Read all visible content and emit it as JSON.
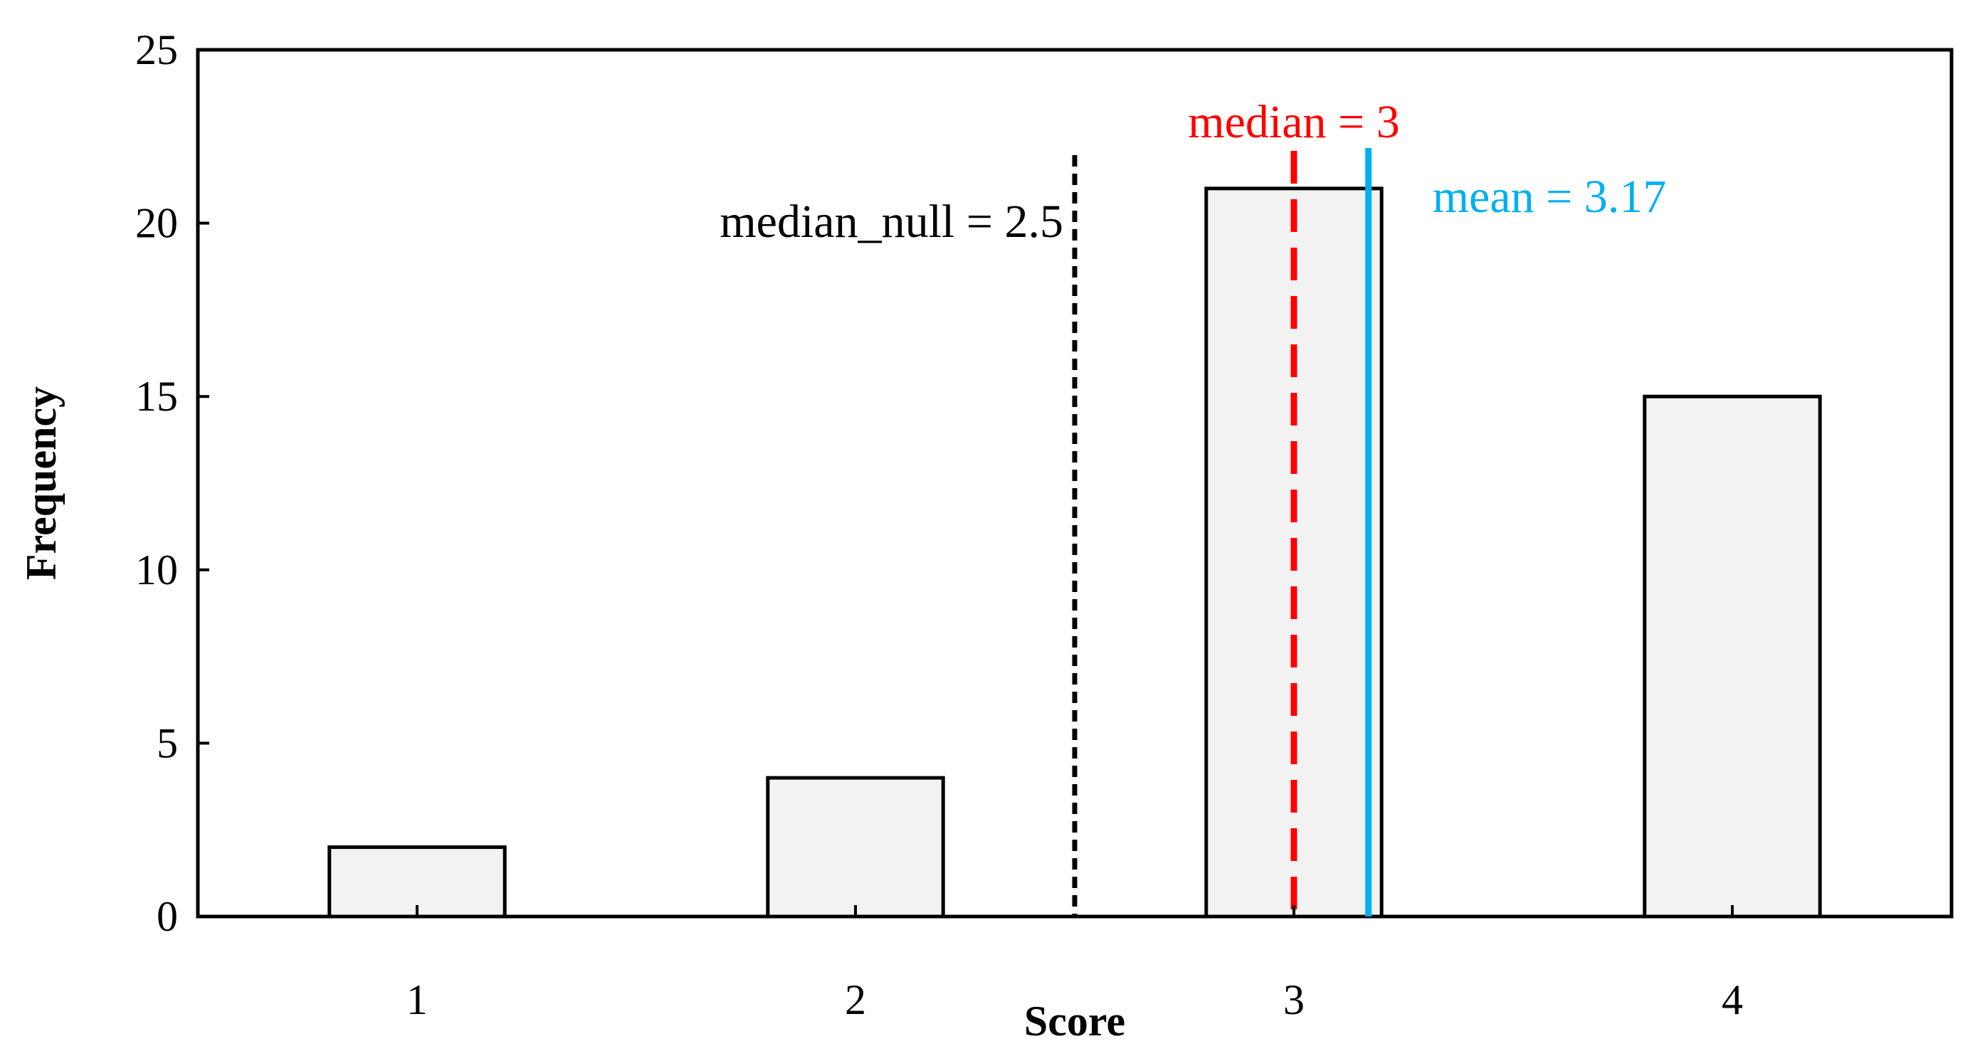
{
  "chart_data": {
    "type": "bar",
    "xlabel": "Score",
    "ylabel": "Frequency",
    "categories": [
      "1",
      "2",
      "3",
      "4"
    ],
    "x": [
      1,
      2,
      3,
      4
    ],
    "values": [
      2,
      4,
      21,
      15
    ],
    "ylim": [
      0,
      25
    ],
    "yticks": [
      0,
      5,
      10,
      15,
      20,
      25
    ],
    "xlim": [
      0.5,
      4.5
    ],
    "grid": false,
    "bar_fill": "#f2f2f2",
    "bar_edge": "#000000",
    "reference_lines": [
      {
        "label": "median_null = 2.5",
        "x": 2.5,
        "style": "dotted",
        "color": "#000000"
      },
      {
        "label": "median = 3",
        "x": 3.0,
        "style": "dashed",
        "color": "#ff0000"
      },
      {
        "label": "mean = 3.17",
        "x": 3.17,
        "style": "solid",
        "color": "#00b0f0"
      }
    ]
  }
}
